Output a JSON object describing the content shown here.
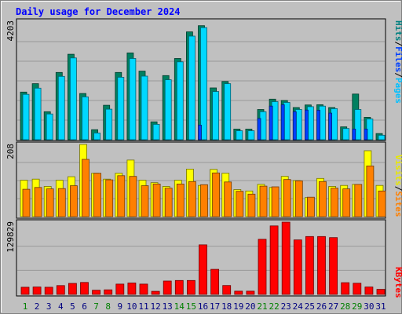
{
  "chart_data": {
    "type": "bar",
    "title": "Daily usage for December 2024",
    "categories": [
      "1",
      "2",
      "3",
      "4",
      "5",
      "6",
      "7",
      "8",
      "9",
      "10",
      "11",
      "12",
      "13",
      "14",
      "15",
      "16",
      "17",
      "18",
      "19",
      "20",
      "21",
      "22",
      "23",
      "24",
      "25",
      "26",
      "27",
      "28",
      "29",
      "30",
      "31"
    ],
    "weekend_days": [
      "1",
      "7",
      "8",
      "14",
      "15",
      "21",
      "22",
      "28",
      "29"
    ],
    "grid": true,
    "panels": [
      {
        "id": "hits",
        "max_label": "4203",
        "ylim": [
          0,
          4203
        ],
        "legend": [
          "Pages",
          "Files",
          "Hits"
        ],
        "legend_colors": [
          "#00c0ff",
          "#0040ff",
          "#008080"
        ],
        "series": [
          {
            "name": "Hits",
            "color": "#008060",
            "values": [
              1700,
              2000,
              1000,
              2400,
              3050,
              1650,
              360,
              1230,
              2400,
              3100,
              2450,
              640,
              2290,
              2900,
              3850,
              4070,
              1850,
              2080,
              380,
              380,
              1080,
              1450,
              1400,
              1150,
              1240,
              1250,
              1150,
              460,
              1630,
              800,
              220
            ]
          },
          {
            "name": "Files",
            "color": "#00d8ff",
            "values": [
              1620,
              1840,
              920,
              2260,
              2920,
              1530,
              240,
              1090,
              2230,
              2900,
              2270,
              550,
              2140,
              2780,
              3700,
              4000,
              1720,
              2000,
              320,
              320,
              1000,
              1360,
              1330,
              1080,
              1180,
              1200,
              1110,
              400,
              1080,
              740,
              160
            ]
          },
          {
            "name": "Pages",
            "color": "#0040ff",
            "values": [
              0,
              0,
              0,
              0,
              0,
              0,
              0,
              0,
              0,
              0,
              0,
              0,
              0,
              0,
              0,
              520,
              0,
              0,
              0,
              0,
              760,
              1200,
              1250,
              1000,
              1060,
              1050,
              950,
              0,
              380,
              380,
              0
            ]
          }
        ]
      },
      {
        "id": "visits",
        "max_label": "208",
        "ylim": [
          0,
          208
        ],
        "legend": [
          "Sites",
          "Visits"
        ],
        "legend_colors": [
          "#ff8000",
          "#ffff00"
        ],
        "series": [
          {
            "name": "Visits",
            "color": "#ffff00",
            "values": [
              105,
              108,
              87,
              105,
              115,
              208,
              125,
              108,
              125,
              163,
              105,
              98,
              87,
              105,
              137,
              90,
              136,
              125,
              78,
              74,
              93,
              84,
              116,
              104,
              55,
              110,
              87,
              90,
              93,
              190,
              90
            ]
          },
          {
            "name": "Sites",
            "color": "#ff8000",
            "values": [
              79,
              84,
              80,
              81,
              89,
              165,
              125,
              106,
              118,
              116,
              89,
              94,
              82,
              94,
              101,
              92,
              126,
              100,
              73,
              65,
              88,
              86,
              107,
              103,
              56,
              101,
              82,
              80,
              93,
              146,
              74
            ]
          }
        ]
      },
      {
        "id": "kbytes",
        "max_label": "129829",
        "ylim": [
          0,
          129829
        ],
        "legend": [
          "KBytes"
        ],
        "legend_colors": [
          "#ff0000"
        ],
        "series": [
          {
            "name": "KBytes",
            "color": "#ff0000",
            "values": [
              12800,
              13300,
              12800,
              15800,
              19800,
              21500,
              7500,
              8200,
              18500,
              20500,
              18500,
              5500,
              24000,
              25000,
              25000,
              89000,
              45000,
              16000,
              5800,
              5800,
              99000,
              123000,
              129829,
              98000,
              104000,
              104000,
              102000,
              21000,
              20000,
              13300,
              9000
            ]
          }
        ]
      }
    ]
  }
}
